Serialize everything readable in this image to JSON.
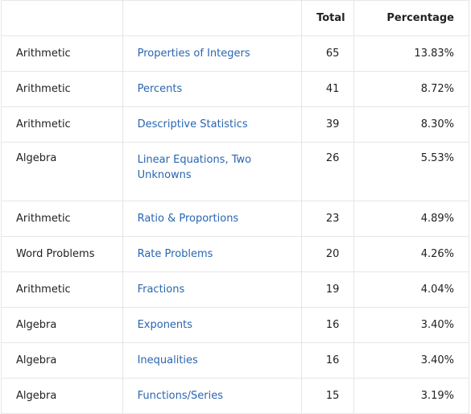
{
  "table": {
    "headers": {
      "category": "",
      "subtopic": "",
      "total": "Total",
      "percentage": "Percentage"
    },
    "rows": [
      {
        "category": "Arithmetic",
        "subtopic": "Properties of Integers",
        "total": "65",
        "percentage": "13.83%"
      },
      {
        "category": "Arithmetic",
        "subtopic": "Percents",
        "total": "41",
        "percentage": "8.72%"
      },
      {
        "category": "Arithmetic",
        "subtopic": "Descriptive Statistics",
        "total": "39",
        "percentage": "8.30%"
      },
      {
        "category": "Algebra",
        "subtopic": "Linear Equations, Two Unknowns",
        "total": "26",
        "percentage": "5.53%"
      },
      {
        "category": "Arithmetic",
        "subtopic": "Ratio & Proportions",
        "total": "23",
        "percentage": "4.89%"
      },
      {
        "category": "Word Problems",
        "subtopic": "Rate Problems",
        "total": "20",
        "percentage": "4.26%"
      },
      {
        "category": "Arithmetic",
        "subtopic": "Fractions",
        "total": "19",
        "percentage": "4.04%"
      },
      {
        "category": "Algebra",
        "subtopic": "Exponents",
        "total": "16",
        "percentage": "3.40%"
      },
      {
        "category": "Algebra",
        "subtopic": "Inequalities",
        "total": "16",
        "percentage": "3.40%"
      },
      {
        "category": "Algebra",
        "subtopic": "Functions/Series",
        "total": "15",
        "percentage": "3.19%"
      }
    ]
  },
  "colors": {
    "link": "#2a66b0",
    "border": "#e6e6e6",
    "text": "#222222"
  }
}
